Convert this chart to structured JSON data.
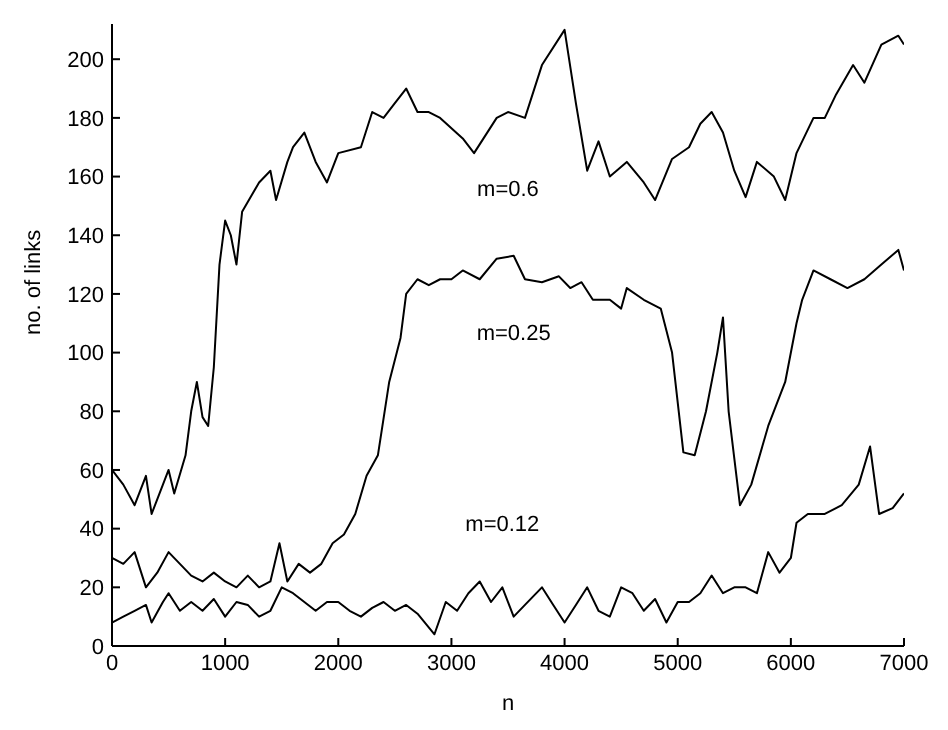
{
  "chart_data": {
    "type": "line",
    "xlabel": "n",
    "ylabel": "no. of links",
    "xlim": [
      0,
      7000
    ],
    "xticks": [
      0,
      1000,
      2000,
      3000,
      4000,
      5000,
      6000,
      7000
    ],
    "ylim": [
      0,
      212
    ],
    "yticks": [
      0,
      20,
      40,
      60,
      80,
      100,
      120,
      140,
      160,
      180,
      200
    ],
    "grid": false,
    "legend": false,
    "marker": "none",
    "line_style": "solid",
    "series": [
      {
        "name": "m=0.6",
        "color": "#000000",
        "x": [
          0,
          100,
          200,
          300,
          350,
          450,
          500,
          550,
          650,
          700,
          750,
          800,
          850,
          900,
          950,
          1000,
          1050,
          1100,
          1150,
          1300,
          1400,
          1450,
          1550,
          1600,
          1700,
          1800,
          1900,
          2000,
          2200,
          2300,
          2400,
          2500,
          2600,
          2700,
          2800,
          2900,
          3100,
          3200,
          3400,
          3500,
          3650,
          3800,
          4000,
          4100,
          4200,
          4300,
          4400,
          4550,
          4700,
          4800,
          4950,
          5100,
          5200,
          5300,
          5400,
          5500,
          5600,
          5700,
          5850,
          5950,
          6050,
          6200,
          6300,
          6400,
          6550,
          6650,
          6800,
          6950,
          7000
        ],
        "values": [
          60,
          55,
          48,
          58,
          45,
          55,
          60,
          52,
          65,
          80,
          90,
          78,
          75,
          95,
          130,
          145,
          140,
          130,
          148,
          158,
          162,
          152,
          165,
          170,
          175,
          165,
          158,
          168,
          170,
          182,
          180,
          185,
          190,
          182,
          182,
          180,
          173,
          168,
          180,
          182,
          180,
          198,
          210,
          185,
          162,
          172,
          160,
          165,
          158,
          152,
          166,
          170,
          178,
          182,
          175,
          162,
          153,
          165,
          160,
          152,
          168,
          180,
          180,
          188,
          198,
          192,
          205,
          208,
          205
        ]
      },
      {
        "name": "m=0.25",
        "color": "#000000",
        "x": [
          0,
          100,
          200,
          300,
          400,
          500,
          600,
          700,
          800,
          900,
          1000,
          1100,
          1200,
          1300,
          1400,
          1480,
          1550,
          1650,
          1750,
          1850,
          1950,
          2050,
          2150,
          2250,
          2350,
          2450,
          2550,
          2600,
          2700,
          2800,
          2900,
          3000,
          3100,
          3250,
          3400,
          3550,
          3650,
          3800,
          3950,
          4050,
          4150,
          4250,
          4400,
          4500,
          4550,
          4700,
          4850,
          4950,
          5050,
          5150,
          5250,
          5350,
          5400,
          5450,
          5550,
          5650,
          5800,
          5950,
          6050,
          6100,
          6200,
          6350,
          6500,
          6650,
          6800,
          6950,
          7000
        ],
        "values": [
          30,
          28,
          32,
          20,
          25,
          32,
          28,
          24,
          22,
          25,
          22,
          20,
          24,
          20,
          22,
          35,
          22,
          28,
          25,
          28,
          35,
          38,
          45,
          58,
          65,
          90,
          105,
          120,
          125,
          123,
          125,
          125,
          128,
          125,
          132,
          133,
          125,
          124,
          126,
          122,
          124,
          118,
          118,
          115,
          122,
          118,
          115,
          100,
          66,
          65,
          80,
          100,
          112,
          80,
          48,
          55,
          75,
          90,
          110,
          118,
          128,
          125,
          122,
          125,
          130,
          135,
          128
        ]
      },
      {
        "name": "m=0.12",
        "color": "#000000",
        "x": [
          0,
          100,
          200,
          300,
          350,
          450,
          500,
          600,
          700,
          800,
          900,
          1000,
          1100,
          1200,
          1300,
          1400,
          1500,
          1600,
          1700,
          1800,
          1900,
          2000,
          2100,
          2200,
          2300,
          2400,
          2500,
          2600,
          2700,
          2850,
          2950,
          3050,
          3150,
          3250,
          3350,
          3450,
          3550,
          3650,
          3800,
          3900,
          4000,
          4100,
          4200,
          4300,
          4400,
          4500,
          4600,
          4700,
          4800,
          4900,
          5000,
          5100,
          5200,
          5300,
          5400,
          5500,
          5600,
          5700,
          5800,
          5900,
          6000,
          6050,
          6150,
          6300,
          6450,
          6600,
          6700,
          6780,
          6900,
          7000
        ],
        "values": [
          8,
          10,
          12,
          14,
          8,
          15,
          18,
          12,
          15,
          12,
          16,
          10,
          15,
          14,
          10,
          12,
          20,
          18,
          15,
          12,
          15,
          15,
          12,
          10,
          13,
          15,
          12,
          14,
          11,
          4,
          15,
          12,
          18,
          22,
          15,
          20,
          10,
          14,
          20,
          14,
          8,
          14,
          20,
          12,
          10,
          20,
          18,
          12,
          16,
          8,
          15,
          15,
          18,
          24,
          18,
          20,
          20,
          18,
          32,
          25,
          30,
          42,
          45,
          45,
          48,
          55,
          68,
          45,
          47,
          52
        ]
      }
    ]
  }
}
